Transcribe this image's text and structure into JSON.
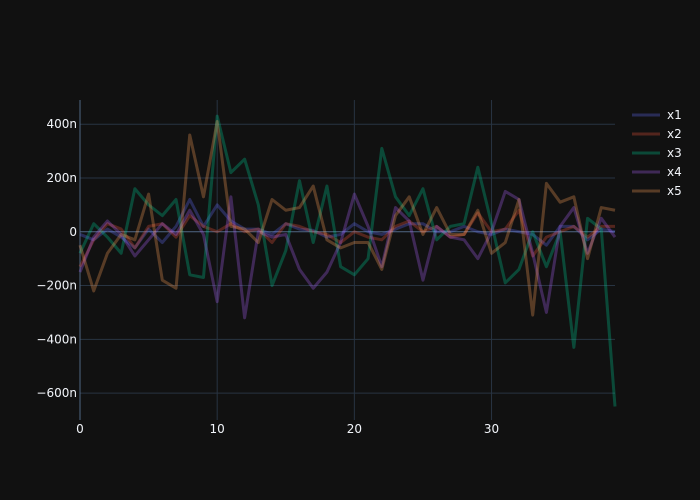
{
  "chart_data": {
    "type": "line",
    "title": "",
    "xlabel": "",
    "ylabel": "",
    "xlim": [
      0,
      39
    ],
    "ylim": [
      -700,
      490
    ],
    "x_ticks": [
      0,
      10,
      20,
      30
    ],
    "x_tick_labels": [
      "0",
      "10",
      "20",
      "30"
    ],
    "y_ticks": [
      -600,
      -400,
      -200,
      0,
      200,
      400
    ],
    "y_tick_labels": [
      "−600n",
      "−400n",
      "−200n",
      "0",
      "200n",
      "400n"
    ],
    "y_unit_suffix": "n",
    "grid": true,
    "legend_position": "top-right",
    "x": [
      0,
      1,
      2,
      3,
      4,
      5,
      6,
      7,
      8,
      9,
      10,
      11,
      12,
      13,
      14,
      15,
      16,
      17,
      18,
      19,
      20,
      21,
      22,
      23,
      24,
      25,
      26,
      27,
      28,
      29,
      30,
      31,
      32,
      33,
      34,
      35,
      36,
      37,
      38,
      39
    ],
    "series": [
      {
        "name": "x1",
        "color": "#636efa",
        "values": [
          -10,
          -30,
          10,
          -20,
          -60,
          10,
          -40,
          20,
          120,
          20,
          100,
          40,
          10,
          10,
          -10,
          30,
          10,
          5,
          -20,
          -10,
          30,
          0,
          -10,
          10,
          30,
          30,
          0,
          0,
          20,
          0,
          -10,
          10,
          0,
          -10,
          -50,
          20,
          20,
          -30,
          10,
          0
        ]
      },
      {
        "name": "x2",
        "color": "#ef553b",
        "values": [
          -130,
          -30,
          30,
          10,
          -60,
          20,
          30,
          -20,
          60,
          20,
          0,
          30,
          0,
          10,
          -40,
          30,
          20,
          0,
          -10,
          -40,
          0,
          -20,
          -30,
          20,
          40,
          0,
          20,
          -20,
          -10,
          70,
          0,
          10,
          80,
          -90,
          -20,
          0,
          20,
          -20,
          20,
          20
        ]
      },
      {
        "name": "x3",
        "color": "#00cc96",
        "values": [
          -80,
          30,
          -20,
          -80,
          160,
          100,
          60,
          120,
          -160,
          -170,
          430,
          220,
          270,
          100,
          -200,
          -70,
          190,
          -40,
          170,
          -130,
          -160,
          -100,
          310,
          130,
          60,
          160,
          -30,
          20,
          30,
          240,
          30,
          -190,
          -140,
          0,
          -130,
          0,
          -430,
          50,
          10,
          -650
        ]
      },
      {
        "name": "x4",
        "color": "#ab63fa",
        "values": [
          -150,
          -20,
          40,
          -10,
          -90,
          -30,
          30,
          -10,
          80,
          -10,
          -260,
          130,
          -320,
          0,
          -20,
          -10,
          -140,
          -210,
          -150,
          -40,
          140,
          20,
          -130,
          90,
          40,
          -180,
          20,
          -20,
          -30,
          -100,
          0,
          150,
          120,
          -80,
          -300,
          20,
          90,
          -80,
          50,
          -20
        ]
      },
      {
        "name": "x5",
        "color": "#ffa15a",
        "values": [
          -50,
          -220,
          -80,
          -10,
          -30,
          140,
          -180,
          -210,
          360,
          130,
          410,
          20,
          10,
          -40,
          120,
          80,
          90,
          170,
          -30,
          -60,
          -40,
          -40,
          -140,
          60,
          130,
          -10,
          90,
          -10,
          -10,
          80,
          -80,
          -40,
          120,
          -310,
          180,
          110,
          130,
          -100,
          90,
          80
        ]
      }
    ]
  }
}
